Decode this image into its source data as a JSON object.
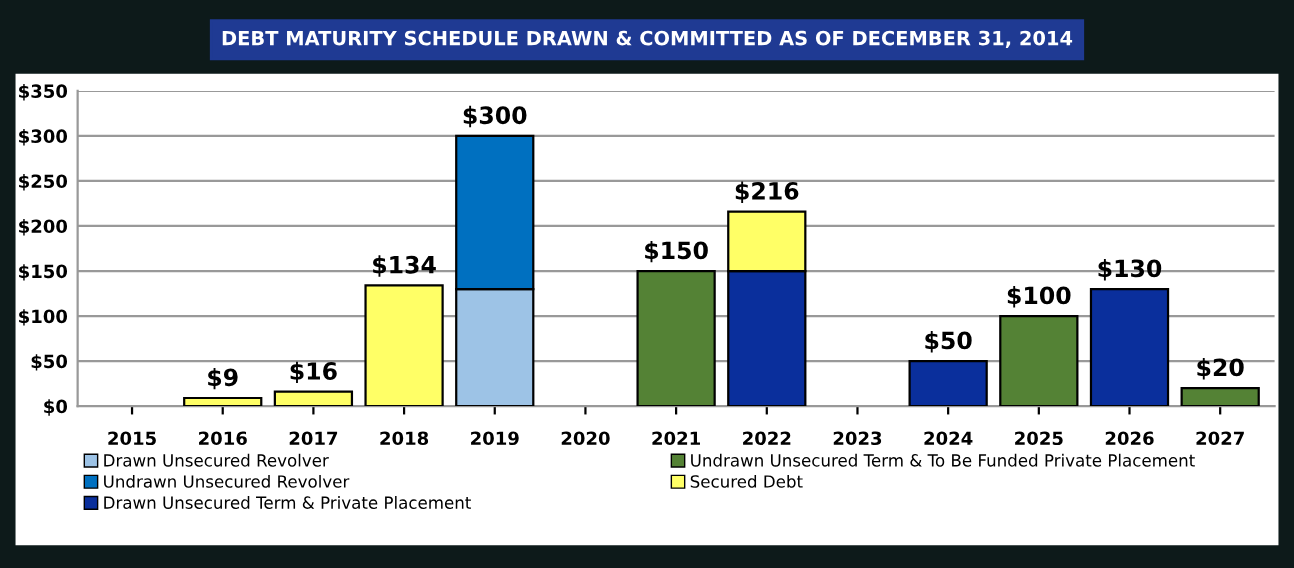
{
  "chart_data": {
    "type": "bar",
    "title": "DEBT MATURITY SCHEDULE DRAWN & COMMITTED AS OF DECEMBER 31, 2014",
    "stacked": true,
    "categories": [
      "2015",
      "2016",
      "2017",
      "2018",
      "2019",
      "2020",
      "2021",
      "2022",
      "2023",
      "2024",
      "2025",
      "2026",
      "2027"
    ],
    "series": [
      {
        "name": "Drawn Unsecured Revolver",
        "color": "#9dc3e6",
        "values": [
          null,
          null,
          null,
          null,
          130,
          null,
          null,
          null,
          null,
          null,
          null,
          null,
          null
        ]
      },
      {
        "name": "Undrawn Unsecured Revolver",
        "color": "#0070c0",
        "values": [
          null,
          null,
          null,
          null,
          170,
          null,
          null,
          null,
          null,
          null,
          null,
          null,
          null
        ]
      },
      {
        "name": "Drawn Unsecured Term & Private Placement",
        "color": "#0a2f9c",
        "values": [
          null,
          null,
          null,
          null,
          null,
          null,
          null,
          150,
          null,
          50,
          null,
          130,
          null
        ]
      },
      {
        "name": "Undrawn Unsecured Term & To Be Funded Private Placement",
        "color": "#548235",
        "values": [
          null,
          null,
          null,
          null,
          null,
          null,
          150,
          null,
          null,
          null,
          100,
          null,
          20
        ]
      },
      {
        "name": "Secured Debt",
        "color": "#ffff66",
        "values": [
          null,
          9,
          16,
          134,
          null,
          null,
          null,
          66,
          null,
          null,
          null,
          null,
          null
        ]
      }
    ],
    "totals": [
      null,
      "$9",
      "$16",
      "$134",
      "$300",
      null,
      "$150",
      "$216",
      null,
      "$50",
      "$100",
      "$130",
      "$20"
    ],
    "ylim": [
      0,
      350
    ],
    "yticks": [
      {
        "value": 0,
        "label": "$0"
      },
      {
        "value": 50,
        "label": "$50"
      },
      {
        "value": 100,
        "label": "$100"
      },
      {
        "value": 150,
        "label": "$150"
      },
      {
        "value": 200,
        "label": "$200"
      },
      {
        "value": 250,
        "label": "$250"
      },
      {
        "value": 300,
        "label": "$300"
      },
      {
        "value": 350,
        "label": "$350"
      }
    ],
    "grid": "y",
    "legend": "bottom"
  }
}
